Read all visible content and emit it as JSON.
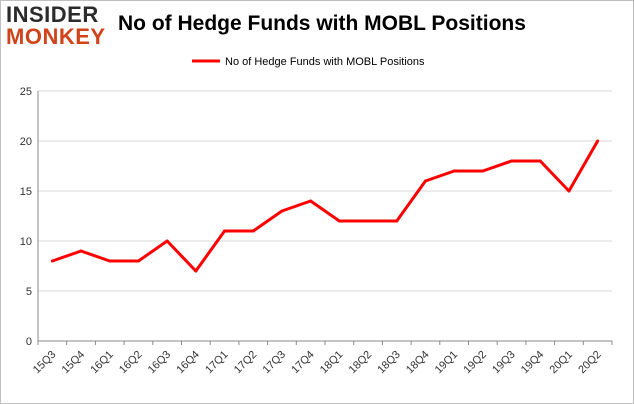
{
  "logo": {
    "line1": "INSIDER",
    "line2": "MONKEY"
  },
  "colors": {
    "series": "#ff0000",
    "grid": "#d9d9d9",
    "axis": "#888888",
    "logo_accent": "#d0441c"
  },
  "chart_data": {
    "type": "line",
    "title": "No of Hedge Funds with MOBL Positions",
    "xlabel": "",
    "ylabel": "",
    "ylim": [
      0,
      25
    ],
    "yticks": [
      0,
      5,
      10,
      15,
      20,
      25
    ],
    "grid": true,
    "legend_placement": "top-center",
    "categories": [
      "15Q3",
      "15Q4",
      "16Q1",
      "16Q2",
      "16Q3",
      "16Q4",
      "17Q1",
      "17Q2",
      "17Q3",
      "17Q4",
      "18Q1",
      "18Q2",
      "18Q3",
      "18Q4",
      "19Q1",
      "19Q2",
      "19Q3",
      "19Q4",
      "20Q1",
      "20Q2"
    ],
    "series": [
      {
        "name": "No of Hedge Funds with MOBL Positions",
        "values": [
          8,
          9,
          8,
          8,
          10,
          7,
          11,
          11,
          13,
          14,
          12,
          12,
          12,
          16,
          17,
          17,
          18,
          18,
          15,
          20
        ]
      }
    ]
  }
}
